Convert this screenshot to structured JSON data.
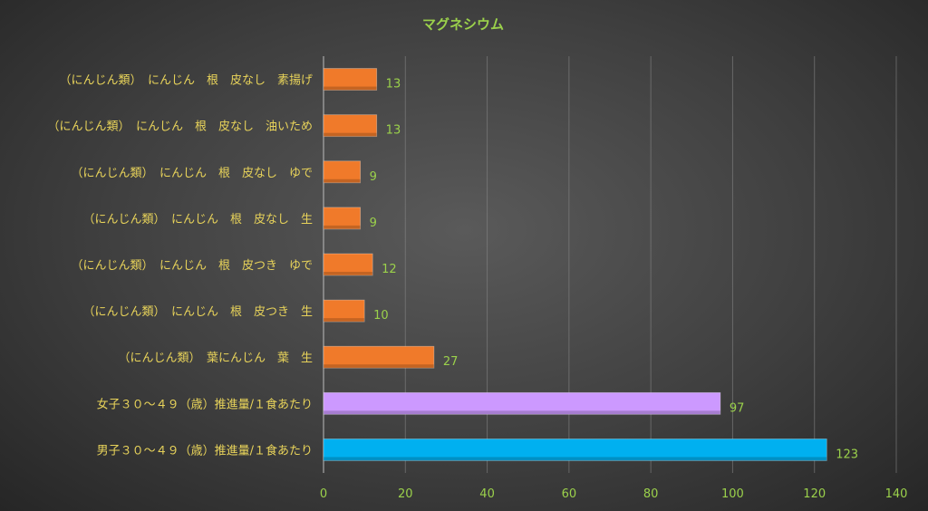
{
  "chart_data": {
    "type": "bar",
    "orientation": "horizontal",
    "title": "マグネシウム",
    "categories": [
      "（にんじん類）　にんじん　根　皮なし　素揚げ",
      "（にんじん類）　にんじん　根　皮なし　油いため",
      "（にんじん類）　にんじん　根　皮なし　ゆで",
      "（にんじん類）　にんじん　根　皮なし　生",
      "（にんじん類）　にんじん　根　皮つき　ゆで",
      "（にんじん類）　にんじん　根　皮つき　生",
      "（にんじん類）　葉にんじん　葉　生",
      "女子３０～４９（歳）推進量/１食あたり",
      "男子３０～４９（歳）推進量/１食あたり"
    ],
    "values": [
      13,
      13,
      9,
      9,
      12,
      10,
      27,
      97,
      123
    ],
    "value_labels": [
      "13",
      "13",
      "9",
      "9",
      "12",
      "10",
      "27",
      "97",
      "123"
    ],
    "bar_colors": [
      "#f07a2a",
      "#f07a2a",
      "#f07a2a",
      "#f07a2a",
      "#f07a2a",
      "#f07a2a",
      "#f07a2a",
      "#cc99ff",
      "#00b0f0"
    ],
    "xlim": [
      0,
      140
    ],
    "xticks": [
      "0",
      "20",
      "40",
      "60",
      "80",
      "100",
      "120",
      "140"
    ],
    "xtick_values": [
      0,
      20,
      40,
      60,
      80,
      100,
      120,
      140
    ],
    "grid": true,
    "legend": "none"
  }
}
